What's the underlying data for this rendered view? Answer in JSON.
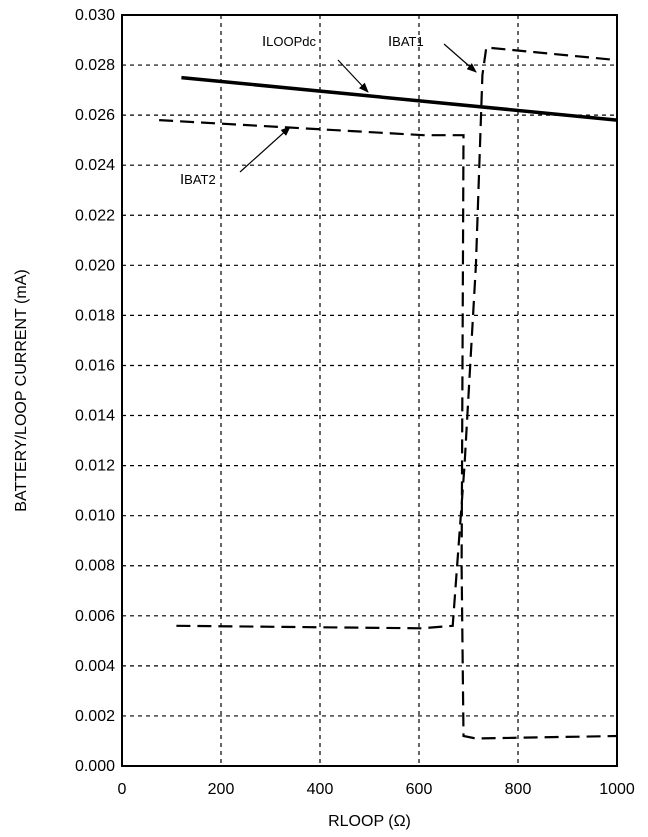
{
  "chart_data": {
    "type": "line",
    "title": "",
    "xlabel": "RLOOP (Ω)",
    "ylabel": "BATTERY/LOOP CURRENT (mA)",
    "xlim": [
      0,
      1000
    ],
    "ylim": [
      0,
      0.03
    ],
    "grid": true,
    "x_ticks": [
      0,
      200,
      400,
      600,
      800,
      1000
    ],
    "x_tick_labels": [
      "0",
      "200",
      "400",
      "600",
      "800",
      "1000"
    ],
    "y_ticks": [
      0,
      0.002,
      0.004,
      0.006,
      0.008,
      0.01,
      0.012,
      0.014,
      0.016,
      0.018,
      0.02,
      0.022,
      0.024,
      0.026,
      0.028,
      0.03
    ],
    "y_tick_labels": [
      "0.000",
      "0.002",
      "0.004",
      "0.006",
      "0.008",
      "0.010",
      "0.012",
      "0.014",
      "0.016",
      "0.018",
      "0.020",
      "0.022",
      "0.024",
      "0.026",
      "0.028",
      "0.030"
    ],
    "series": [
      {
        "name": "ILOOPdc",
        "style": "solid",
        "x": [
          120,
          1000
        ],
        "y": [
          0.0275,
          0.0258
        ]
      },
      {
        "name": "IBAT1",
        "style": "dashed",
        "x": [
          110,
          605,
          668,
          692,
          715,
          728,
          736,
          1000
        ],
        "y": [
          0.0056,
          0.0055,
          0.0056,
          0.012,
          0.02,
          0.0276,
          0.0287,
          0.0282
        ]
      },
      {
        "name": "IBAT2",
        "style": "dashed",
        "x": [
          75,
          610,
          690,
          686,
          690,
          715,
          1000
        ],
        "y": [
          0.0258,
          0.0252,
          0.0252,
          0.008,
          0.0012,
          0.0011,
          0.0012
        ]
      }
    ],
    "annotations": [
      {
        "text": "ILOOPdc",
        "target_series": "ILOOPdc"
      },
      {
        "text": "IBAT1",
        "target_series": "IBAT1"
      },
      {
        "text": "IBAT2",
        "target_series": "IBAT2"
      }
    ]
  }
}
